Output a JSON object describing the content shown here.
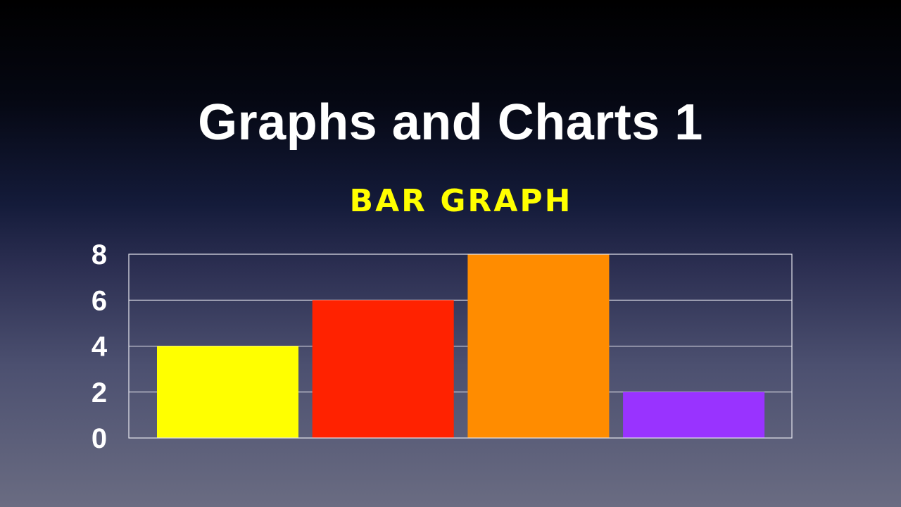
{
  "slide": {
    "title": "Graphs and Charts 1"
  },
  "chart_data": {
    "type": "bar",
    "title": "BAR GRAPH",
    "xlabel": "",
    "ylabel": "",
    "categories": [
      "",
      "",
      "",
      ""
    ],
    "values": [
      4,
      6,
      8,
      2
    ],
    "bar_colors": [
      "#ffff00",
      "#ff2200",
      "#ff8c00",
      "#9933ff"
    ],
    "ylim": [
      0,
      8
    ],
    "yticks": [
      0,
      2,
      4,
      6,
      8
    ],
    "ytick_labels": [
      "0",
      "2",
      "4",
      "6",
      "8"
    ],
    "grid": true,
    "legend": "none"
  }
}
